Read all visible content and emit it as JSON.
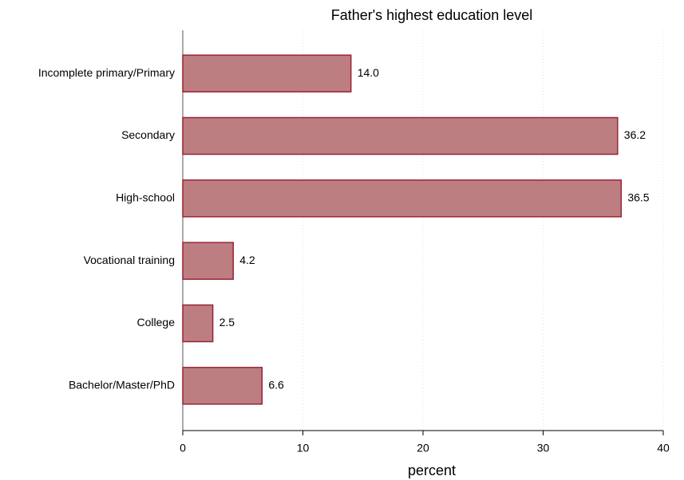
{
  "chart_data": {
    "type": "bar",
    "orientation": "horizontal",
    "title": "Father's highest education level",
    "xlabel": "percent",
    "categories": [
      "Incomplete primary/Primary",
      "Secondary",
      "High-school",
      "Vocational training",
      "College",
      "Bachelor/Master/PhD"
    ],
    "values": [
      14.0,
      36.2,
      36.5,
      4.2,
      2.5,
      6.6
    ],
    "value_labels": [
      "14.0",
      "36.2",
      "36.5",
      "4.2",
      "2.5",
      "6.6"
    ],
    "color": "#bd7e82",
    "edgecolor": "#9b2235",
    "xlim": [
      0,
      40
    ],
    "xticks": [
      0,
      10,
      20,
      30,
      40
    ],
    "grid": true
  }
}
